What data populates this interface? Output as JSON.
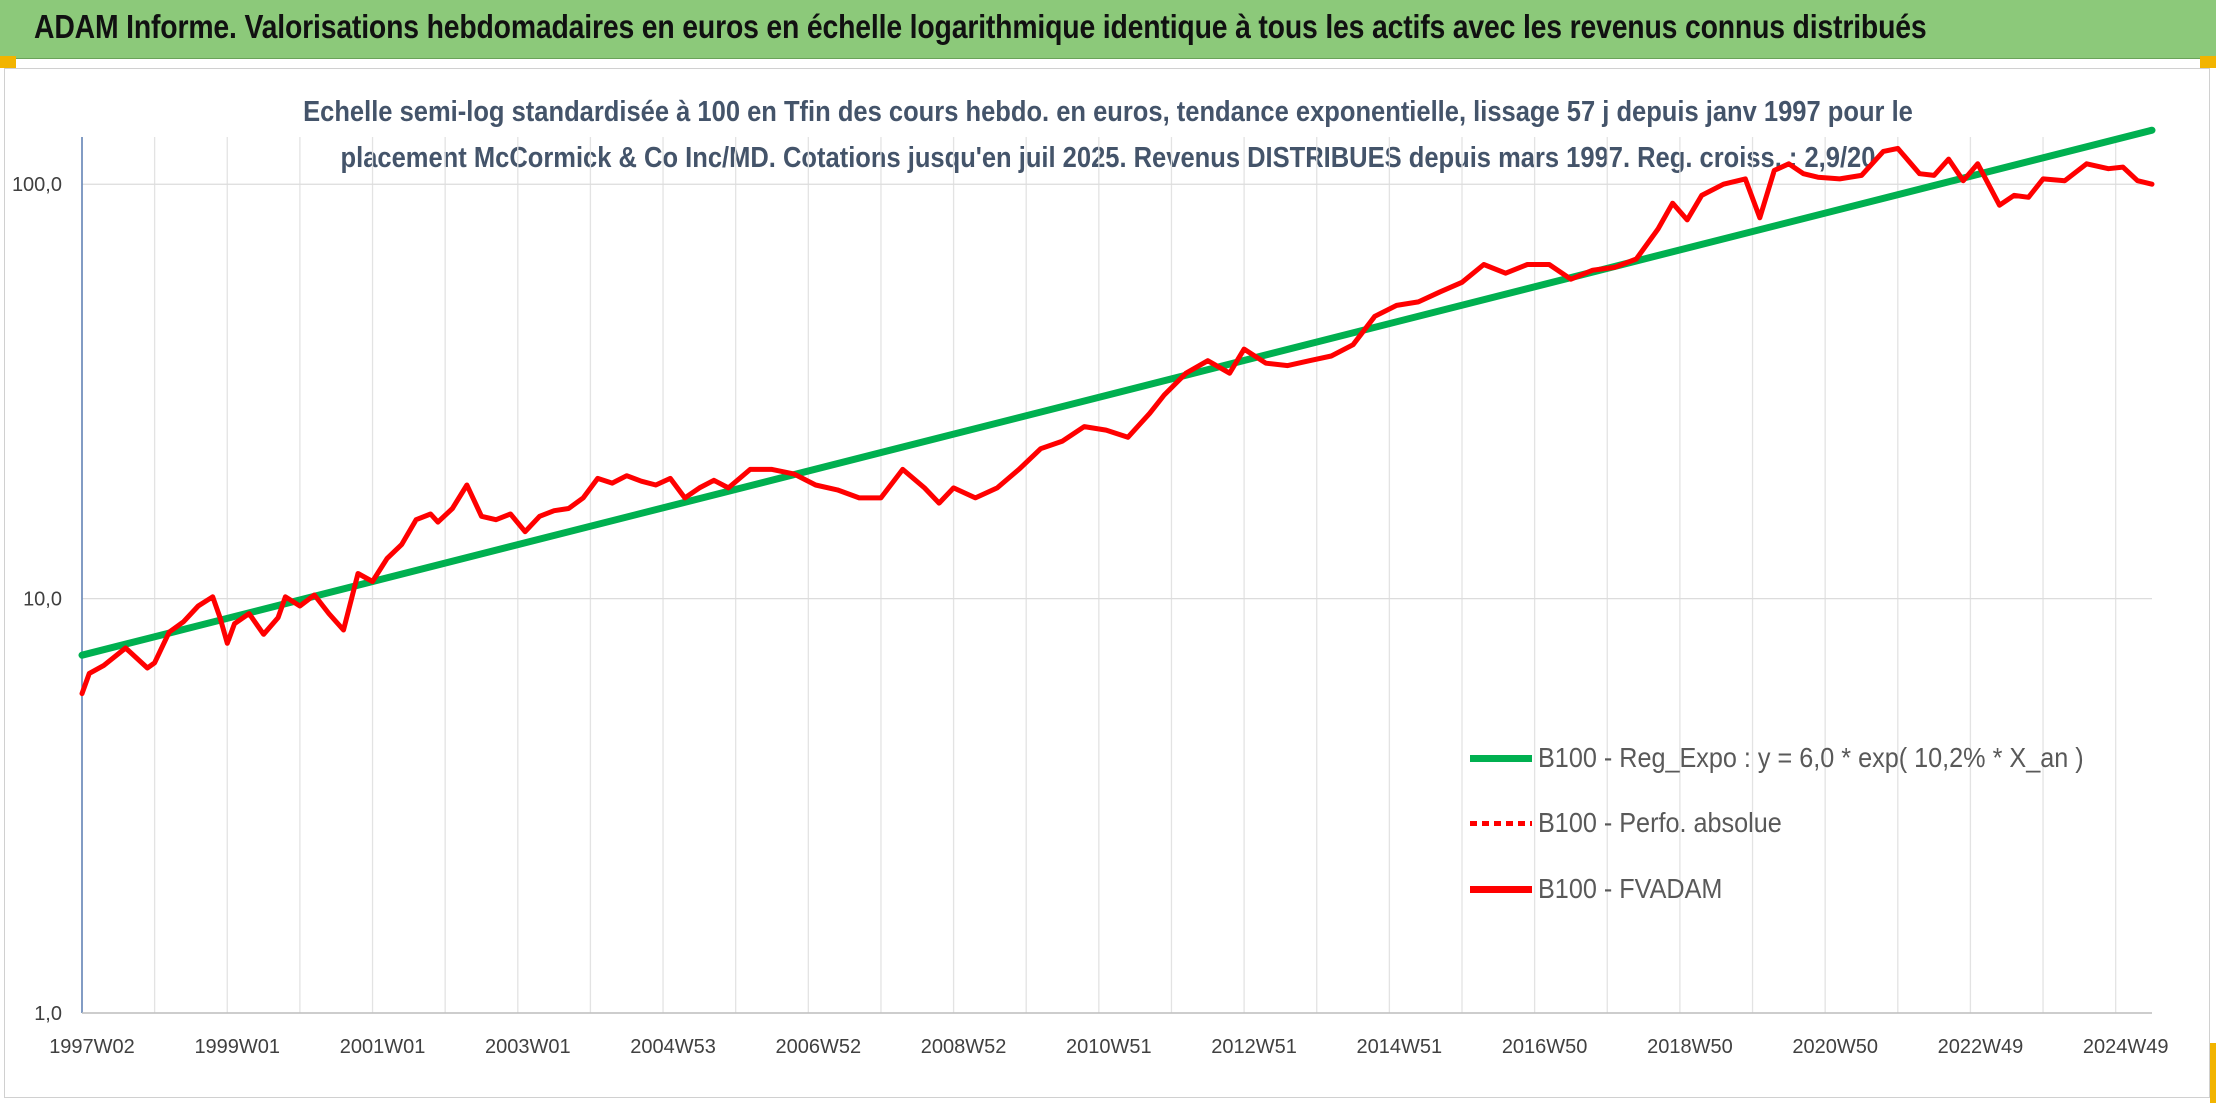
{
  "header": {
    "title": "ADAM Informe. Valorisations hebdomadaires en euros en échelle logarithmique identique à tous les actifs avec les revenus connus distribués"
  },
  "chart_data": {
    "type": "line",
    "title_line1": "Echelle semi-log standardisée à 100 en Tfin des cours hebdo. en euros, tendance exponentielle, lissage 57 j depuis janv 1997 pour le",
    "title_line2": "placement McCormick & Co Inc/MD. Cotations jusqu'en juil 2025. Revenus DISTRIBUES depuis mars 1997. Reg. croiss. : 2,9/20",
    "yscale": "log",
    "ylim": [
      1,
      130
    ],
    "xlim": [
      1997.0,
      2025.5
    ],
    "y_ticks": [
      {
        "value": 1,
        "label": "1,0"
      },
      {
        "value": 10,
        "label": "10,0"
      },
      {
        "value": 100,
        "label": "100,0"
      }
    ],
    "x_ticks": [
      {
        "x": 1997.0,
        "label": "1997W02"
      },
      {
        "x": 1999.0,
        "label": "1999W01"
      },
      {
        "x": 2001.0,
        "label": "2001W01"
      },
      {
        "x": 2003.0,
        "label": "2003W01"
      },
      {
        "x": 2005.0,
        "label": "2004W53"
      },
      {
        "x": 2007.0,
        "label": "2006W52"
      },
      {
        "x": 2009.0,
        "label": "2008W52"
      },
      {
        "x": 2011.0,
        "label": "2010W51"
      },
      {
        "x": 2013.0,
        "label": "2012W51"
      },
      {
        "x": 2015.0,
        "label": "2014W51"
      },
      {
        "x": 2017.0,
        "label": "2016W50"
      },
      {
        "x": 2019.0,
        "label": "2018W50"
      },
      {
        "x": 2021.0,
        "label": "2020W50"
      },
      {
        "x": 2023.0,
        "label": "2022W49"
      },
      {
        "x": 2025.0,
        "label": "2024W49"
      }
    ],
    "grid": true,
    "legend_position": "bottom-right",
    "series": [
      {
        "name": "B100 - Reg_Expo : y = 6,0 * exp( 10,2% *  X_an )",
        "color": "#00b050",
        "style": "solid",
        "x": [
          1997.0,
          2025.5
        ],
        "y": [
          7.3,
          135
        ]
      },
      {
        "name": "B100 - Perfo. absolue",
        "color": "#ff0000",
        "style": "dotted",
        "x": [],
        "y": []
      },
      {
        "name": "B100 - FVADAM",
        "color": "#ff0000",
        "style": "solid",
        "x": [
          1997.0,
          1997.1,
          1997.3,
          1997.6,
          1997.9,
          1998.0,
          1998.2,
          1998.4,
          1998.6,
          1998.8,
          1998.9,
          1999.0,
          1999.1,
          1999.3,
          1999.5,
          1999.7,
          1999.8,
          2000.0,
          2000.2,
          2000.4,
          2000.6,
          2000.8,
          2001.0,
          2001.2,
          2001.4,
          2001.6,
          2001.8,
          2001.9,
          2002.1,
          2002.3,
          2002.5,
          2002.7,
          2002.9,
          2003.1,
          2003.3,
          2003.5,
          2003.7,
          2003.9,
          2004.1,
          2004.3,
          2004.5,
          2004.7,
          2004.9,
          2005.1,
          2005.3,
          2005.5,
          2005.7,
          2005.9,
          2006.2,
          2006.5,
          2006.8,
          2007.1,
          2007.4,
          2007.7,
          2008.0,
          2008.3,
          2008.6,
          2008.8,
          2009.0,
          2009.3,
          2009.6,
          2009.9,
          2010.2,
          2010.5,
          2010.8,
          2011.1,
          2011.4,
          2011.7,
          2011.9,
          2012.2,
          2012.5,
          2012.8,
          2013.0,
          2013.3,
          2013.6,
          2013.9,
          2014.2,
          2014.5,
          2014.8,
          2015.1,
          2015.4,
          2015.7,
          2016.0,
          2016.3,
          2016.6,
          2016.9,
          2017.2,
          2017.5,
          2017.8,
          2018.1,
          2018.4,
          2018.7,
          2018.9,
          2019.1,
          2019.3,
          2019.6,
          2019.9,
          2020.1,
          2020.3,
          2020.5,
          2020.7,
          2020.9,
          2021.2,
          2021.5,
          2021.8,
          2022.0,
          2022.3,
          2022.5,
          2022.7,
          2022.9,
          2023.1,
          2023.4,
          2023.6,
          2023.8,
          2024.0,
          2024.3,
          2024.6,
          2024.9,
          2025.1,
          2025.3,
          2025.5
        ],
        "y": [
          5.9,
          6.6,
          6.9,
          7.6,
          6.8,
          7.0,
          8.3,
          8.8,
          9.6,
          10.1,
          9.0,
          7.8,
          8.7,
          9.2,
          8.2,
          9.0,
          10.1,
          9.6,
          10.2,
          9.2,
          8.4,
          11.5,
          11.0,
          12.5,
          13.5,
          15.5,
          16.0,
          15.3,
          16.5,
          18.8,
          15.8,
          15.5,
          16.0,
          14.5,
          15.8,
          16.3,
          16.5,
          17.5,
          19.5,
          19.0,
          19.8,
          19.2,
          18.8,
          19.5,
          17.5,
          18.5,
          19.3,
          18.5,
          20.5,
          20.5,
          20.0,
          18.8,
          18.3,
          17.5,
          17.5,
          20.5,
          18.5,
          17.0,
          18.5,
          17.5,
          18.5,
          20.5,
          23.0,
          24.0,
          26.0,
          25.5,
          24.5,
          28.0,
          31.0,
          35.0,
          37.5,
          35.0,
          40.0,
          37.0,
          36.5,
          37.5,
          38.5,
          41.0,
          48.0,
          51.0,
          52.0,
          55.0,
          58.0,
          64.0,
          61.0,
          64.0,
          64.0,
          59.0,
          62.0,
          63.0,
          66.0,
          78.0,
          90.0,
          82.0,
          94.0,
          100.0,
          103.0,
          83.0,
          108.0,
          112.0,
          106.0,
          104.0,
          103.0,
          105.0,
          120.0,
          122.0,
          106.0,
          105.0,
          115.0,
          102.0,
          112.0,
          89.0,
          94.0,
          93.0,
          103.0,
          102.0,
          112.0,
          109.0,
          110.0,
          102.0,
          100.0
        ]
      }
    ]
  }
}
